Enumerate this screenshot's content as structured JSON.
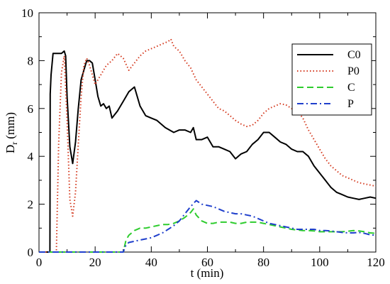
{
  "chart_data": {
    "type": "line",
    "title": "",
    "xlabel": "t (min)",
    "ylabel_main": "D",
    "ylabel_sub": "r",
    "ylabel_unit": "(mm)",
    "xlim": [
      0,
      120
    ],
    "ylim": [
      0,
      10
    ],
    "xticks": [
      0,
      20,
      40,
      60,
      80,
      100,
      120
    ],
    "yticks": [
      0,
      2,
      4,
      6,
      8,
      10
    ],
    "xtick_labels": [
      "0",
      "20",
      "40",
      "60",
      "80",
      "100",
      "120"
    ],
    "ytick_labels": [
      "0",
      "2",
      "4",
      "6",
      "8",
      "10"
    ],
    "grid": false,
    "legend_position": "top-right",
    "series": [
      {
        "name": "C0",
        "color": "#000000",
        "style": "solid",
        "x": [
          0,
          3.9,
          4.0,
          4.3,
          5.0,
          6.0,
          7.0,
          8.0,
          9.0,
          9.5,
          10.0,
          11.0,
          12.0,
          13.0,
          14.0,
          15.0,
          16.0,
          17.0,
          18.0,
          19.0,
          20.0,
          21.0,
          22.0,
          23.0,
          24.0,
          25.0,
          26.0,
          28.0,
          30.0,
          32.0,
          34.0,
          36.0,
          38.0,
          40.0,
          42.0,
          45.0,
          48.0,
          50.0,
          52.0,
          54.0,
          55.0,
          56.0,
          58.0,
          60.0,
          62.0,
          64.0,
          66.0,
          68.0,
          70.0,
          72.0,
          74.0,
          76.0,
          78.0,
          80.0,
          82.0,
          84.0,
          86.0,
          88.0,
          90.0,
          92.0,
          94.0,
          96.0,
          98.0,
          100.0,
          102.0,
          104.0,
          106.0,
          108.0,
          110.0,
          112.0,
          114.0,
          116.0,
          118.0,
          120.0
        ],
        "y": [
          0,
          0,
          6.6,
          7.4,
          8.3,
          8.3,
          8.3,
          8.3,
          8.4,
          8.2,
          6.5,
          4.4,
          3.7,
          4.6,
          6.0,
          7.2,
          7.6,
          8.0,
          8.0,
          7.9,
          7.2,
          6.5,
          6.1,
          6.2,
          6.0,
          6.1,
          5.6,
          5.9,
          6.3,
          6.7,
          6.9,
          6.1,
          5.7,
          5.6,
          5.5,
          5.2,
          5.0,
          5.1,
          5.1,
          5.0,
          5.2,
          4.7,
          4.7,
          4.8,
          4.4,
          4.4,
          4.3,
          4.2,
          3.9,
          4.1,
          4.2,
          4.5,
          4.7,
          5.0,
          5.0,
          4.8,
          4.6,
          4.5,
          4.3,
          4.2,
          4.2,
          4.0,
          3.6,
          3.3,
          3.0,
          2.7,
          2.5,
          2.4,
          2.3,
          2.25,
          2.2,
          2.25,
          2.3,
          2.25
        ]
      },
      {
        "name": "P0",
        "color": "#d43a1f",
        "style": "dotted",
        "x": [
          0,
          6.2,
          7.0,
          8.0,
          9.0,
          10.0,
          11.0,
          12.0,
          13.0,
          14.0,
          15.0,
          16.0,
          17.0,
          18.0,
          20.0,
          22.0,
          24.0,
          26.0,
          28.0,
          30.0,
          32.0,
          34.0,
          36.0,
          38.0,
          40.0,
          42.0,
          44.0,
          46.0,
          47.0,
          48.0,
          50.0,
          52.0,
          54.0,
          56.0,
          58.0,
          60.0,
          62.0,
          64.0,
          66.0,
          68.0,
          70.0,
          72.0,
          74.0,
          76.0,
          78.0,
          80.0,
          82.0,
          84.0,
          86.0,
          88.0,
          90.0,
          92.0,
          94.0,
          96.0,
          98.0,
          100.0,
          102.0,
          104.0,
          106.0,
          108.0,
          110.0,
          112.0,
          114.0,
          116.0,
          118.0,
          120.0
        ],
        "y": [
          0,
          0,
          4.5,
          7.5,
          8.2,
          5.5,
          2.2,
          1.5,
          2.5,
          4.5,
          6.5,
          7.8,
          8.1,
          7.8,
          7.0,
          7.4,
          7.8,
          8.0,
          8.3,
          8.1,
          7.6,
          7.9,
          8.2,
          8.4,
          8.5,
          8.6,
          8.7,
          8.8,
          8.9,
          8.6,
          8.4,
          8.0,
          7.7,
          7.2,
          6.9,
          6.6,
          6.3,
          6.0,
          5.9,
          5.7,
          5.5,
          5.35,
          5.25,
          5.3,
          5.5,
          5.8,
          6.0,
          6.1,
          6.2,
          6.15,
          6.0,
          5.9,
          5.6,
          5.1,
          4.7,
          4.3,
          3.9,
          3.6,
          3.4,
          3.2,
          3.1,
          3.0,
          2.9,
          2.85,
          2.8,
          2.75
        ]
      },
      {
        "name": "C",
        "color": "#2ecc2e",
        "style": "dashed",
        "x": [
          0,
          30.0,
          31.0,
          32.0,
          34.0,
          36.0,
          38.0,
          40.0,
          42.0,
          44.0,
          46.0,
          48.0,
          50.0,
          52.0,
          54.0,
          55.0,
          56.0,
          58.0,
          60.0,
          62.0,
          64.0,
          66.0,
          68.0,
          70.0,
          72.0,
          74.0,
          76.0,
          78.0,
          80.0,
          82.0,
          84.0,
          86.0,
          88.0,
          90.0,
          92.0,
          94.0,
          96.0,
          98.0,
          100.0,
          102.0,
          104.0,
          106.0,
          108.0,
          110.0,
          112.0,
          114.0,
          116.0,
          118.0,
          120.0
        ],
        "y": [
          0,
          0,
          0.5,
          0.7,
          0.9,
          1.0,
          1.0,
          1.05,
          1.1,
          1.15,
          1.15,
          1.2,
          1.3,
          1.45,
          1.65,
          1.8,
          1.55,
          1.3,
          1.2,
          1.2,
          1.25,
          1.25,
          1.25,
          1.2,
          1.2,
          1.25,
          1.25,
          1.25,
          1.2,
          1.15,
          1.1,
          1.05,
          1.0,
          0.95,
          0.92,
          0.9,
          0.9,
          0.88,
          0.85,
          0.85,
          0.85,
          0.85,
          0.85,
          0.87,
          0.9,
          0.88,
          0.85,
          0.8,
          0.78
        ]
      },
      {
        "name": "P",
        "color": "#1f3fcc",
        "style": "dashdot",
        "x": [
          0,
          30.0,
          31.0,
          32.0,
          34.0,
          36.0,
          38.0,
          40.0,
          42.0,
          44.0,
          46.0,
          48.0,
          50.0,
          52.0,
          54.0,
          56.0,
          58.0,
          60.0,
          62.0,
          64.0,
          66.0,
          68.0,
          70.0,
          72.0,
          74.0,
          76.0,
          78.0,
          80.0,
          82.0,
          84.0,
          86.0,
          88.0,
          90.0,
          92.0,
          94.0,
          96.0,
          98.0,
          100.0,
          102.0,
          104.0,
          106.0,
          108.0,
          110.0,
          112.0,
          114.0,
          116.0,
          118.0,
          120.0
        ],
        "y": [
          0,
          0,
          0.3,
          0.4,
          0.45,
          0.5,
          0.55,
          0.6,
          0.7,
          0.8,
          0.95,
          1.1,
          1.3,
          1.6,
          1.9,
          2.15,
          2.0,
          1.95,
          1.9,
          1.8,
          1.7,
          1.65,
          1.6,
          1.6,
          1.55,
          1.5,
          1.4,
          1.3,
          1.2,
          1.15,
          1.1,
          1.05,
          1.0,
          0.95,
          0.95,
          0.95,
          0.95,
          0.9,
          0.9,
          0.88,
          0.85,
          0.82,
          0.8,
          0.8,
          0.82,
          0.78,
          0.72,
          0.7
        ]
      }
    ]
  }
}
